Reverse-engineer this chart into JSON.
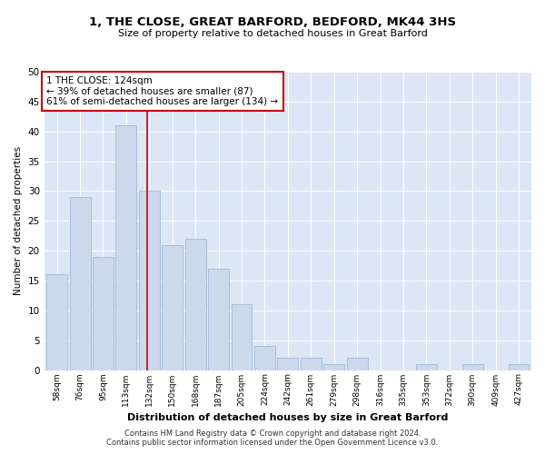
{
  "title": "1, THE CLOSE, GREAT BARFORD, BEDFORD, MK44 3HS",
  "subtitle": "Size of property relative to detached houses in Great Barford",
  "xlabel": "Distribution of detached houses by size in Great Barford",
  "ylabel": "Number of detached properties",
  "bar_color": "#ccd9ed",
  "bar_edge_color": "#a0b8d8",
  "background_color": "#dce6f5",
  "grid_color": "#ffffff",
  "categories": [
    "58sqm",
    "76sqm",
    "95sqm",
    "113sqm",
    "132sqm",
    "150sqm",
    "168sqm",
    "187sqm",
    "205sqm",
    "224sqm",
    "242sqm",
    "261sqm",
    "279sqm",
    "298sqm",
    "316sqm",
    "335sqm",
    "353sqm",
    "372sqm",
    "390sqm",
    "409sqm",
    "427sqm"
  ],
  "values": [
    16,
    29,
    19,
    41,
    30,
    21,
    22,
    17,
    11,
    4,
    2,
    2,
    1,
    2,
    0,
    0,
    1,
    0,
    1,
    0,
    1
  ],
  "ylim": [
    0,
    50
  ],
  "yticks": [
    0,
    5,
    10,
    15,
    20,
    25,
    30,
    35,
    40,
    45,
    50
  ],
  "property_line_x": 3.92,
  "property_line_color": "#cc0000",
  "annotation_text": "1 THE CLOSE: 124sqm\n← 39% of detached houses are smaller (87)\n61% of semi-detached houses are larger (134) →",
  "annotation_box_color": "#ffffff",
  "annotation_box_edge_color": "#cc0000",
  "footer_line1": "Contains HM Land Registry data © Crown copyright and database right 2024.",
  "footer_line2": "Contains public sector information licensed under the Open Government Licence v3.0.",
  "fig_width": 6.0,
  "fig_height": 5.0,
  "dpi": 100
}
